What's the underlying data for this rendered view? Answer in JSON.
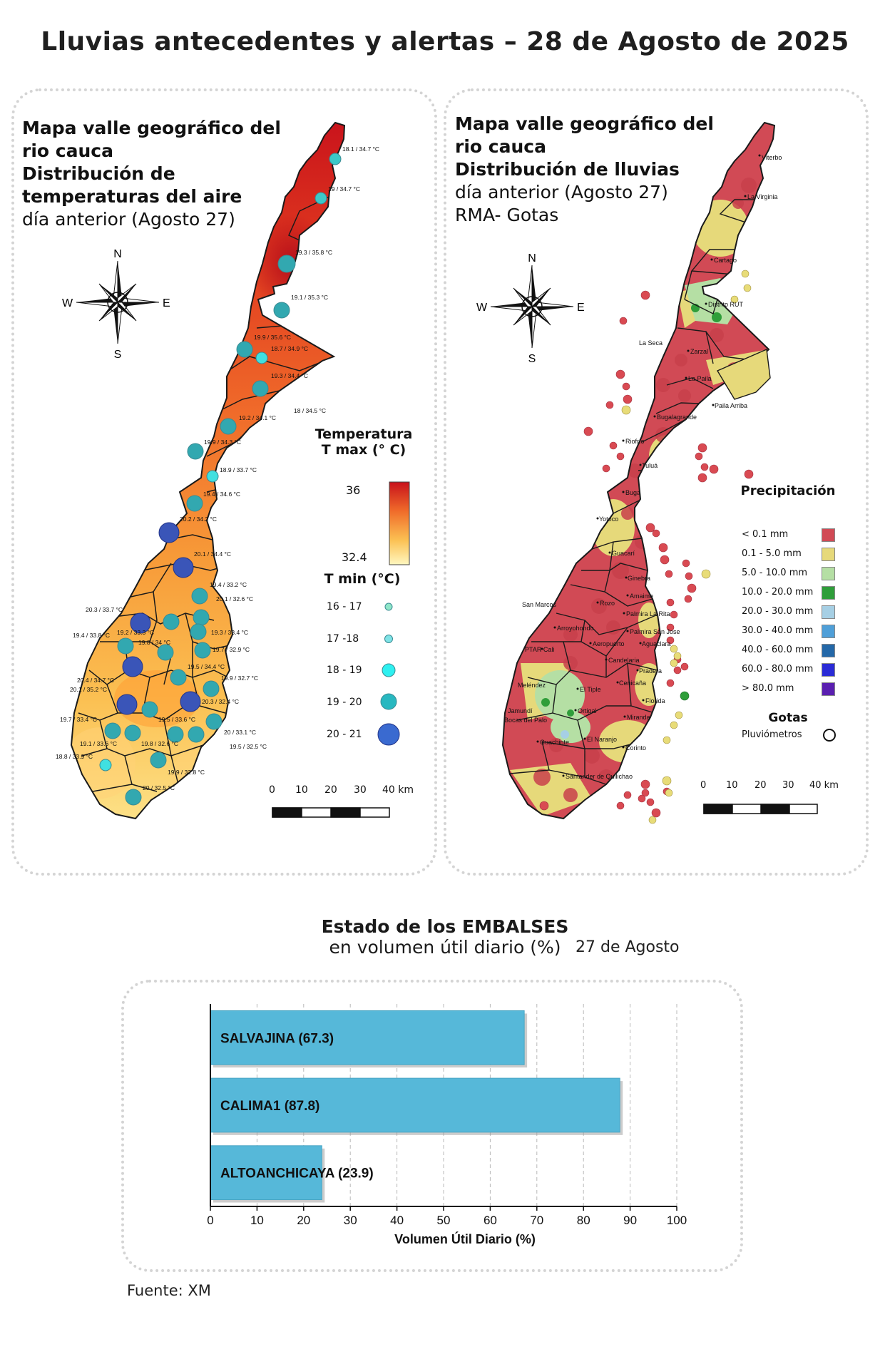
{
  "page_title": "Lluvias antecedentes y alertas – 28 de Agosto de 2025",
  "temp_panel": {
    "title_line1": "Mapa valle geográfico del",
    "title_line2": "rio cauca",
    "title_line3": "Distribución de",
    "title_line4": "temperaturas del aire",
    "title_line5": "día anterior (Agosto 27)",
    "compass": {
      "n": "N",
      "s": "S",
      "e": "E",
      "w": "W"
    },
    "legend_tmax_title_line1": "Temperatura",
    "legend_tmax_title_line2": "T max (° C)",
    "tmax_high": "36",
    "tmax_low": "32.4",
    "legend_tmin_title": "T min (°C)",
    "tmin_classes": [
      "16 - 17",
      "17 -18",
      "18 - 19",
      "19 - 20",
      "20 - 21"
    ],
    "station_labels": [
      "18.1 / 34.7 °C",
      "19 / 34.7 °C",
      "19.3 / 35.8 °C",
      "19.1 / 35.3 °C",
      "19.9 / 35.6 °C",
      "18.7 / 34.9 °C",
      "19.3 / 34.4 °C",
      "18 / 34.5 °C",
      "19.2 / 34.1 °C",
      "19.9 / 34.3 °C",
      "18.9 / 33.7 °C",
      "19.4 / 34.6 °C",
      "20.2 / 34.2 °C",
      "20.1 / 34.4 °C",
      "19.4 / 33.2 °C",
      "20.1 / 32.6 °C",
      "20.3 / 33.7 °C",
      "19.4 / 33.8 °C",
      "19.2 / 33.3 °C",
      "19.8 / 34 °C",
      "19.3 / 33.4 °C",
      "19.7 / 32.9 °C",
      "20.4 / 34.7 °C",
      "19.5 / 34.4 °C",
      "19.9 / 32.7 °C",
      "20.1 / 35.2 °C",
      "20.3 / 32.4 °C",
      "19.7 / 33.4 °C",
      "19.5 / 33.6 °C",
      "20 / 33.1 °C",
      "19.1 / 33.6 °C",
      "19.8 / 32.6 °C",
      "19.5 / 32.5 °C",
      "18.8 / 33.9 °C",
      "19.9 / 32.8 °C",
      "20 / 32.5 °C"
    ],
    "scale_labels": [
      "0",
      "10",
      "20",
      "30",
      "40 km"
    ]
  },
  "rain_panel": {
    "title_line1": "Mapa valle geográfico del",
    "title_line2": "rio cauca",
    "title_line3": "Distribución de lluvias",
    "title_line4": "día anterior (Agosto 27)",
    "title_line5": "RMA- Gotas",
    "compass": {
      "n": "N",
      "s": "S",
      "e": "E",
      "w": "W"
    },
    "legend_title": "Precipitación",
    "precip_classes": [
      {
        "label": "< 0.1 mm",
        "color": "#d14a55"
      },
      {
        "label": "0.1 - 5.0 mm",
        "color": "#e6d97a"
      },
      {
        "label": "5.0 - 10.0 mm",
        "color": "#b5dfa4"
      },
      {
        "label": "10.0 - 20.0 mm",
        "color": "#2f9e3a"
      },
      {
        "label": "20.0 - 30.0 mm",
        "color": "#a6cfe4"
      },
      {
        "label": "30.0 - 40.0 mm",
        "color": "#4f9fd8"
      },
      {
        "label": "40.0 - 60.0 mm",
        "color": "#2468a8"
      },
      {
        "label": "60.0 - 80.0 mm",
        "color": "#2a2bd6"
      },
      {
        "label": "> 80.0 mm",
        "color": "#5a1fb0"
      }
    ],
    "gotas_title": "Gotas",
    "gotas_label": "Pluviómetros",
    "towns": [
      "Viterbo",
      "La Virginia",
      "Cartago",
      "Distrito RUT",
      "La Seca",
      "Zarzal",
      "La Paila",
      "Paila Arriba",
      "Bugalagrande",
      "Riofrío",
      "Tuluá",
      "Buga",
      "Yotoco",
      "Guacarí",
      "Ginebra",
      "San Marcos",
      "Rozo",
      "Amaime",
      "Palmira La Rita",
      "Arroyohondo",
      "Palmira San Jose",
      "Aeropuerto",
      "Aguaclara",
      "PTAR Cali",
      "Candelaria",
      "Cenicaña",
      "Pradera",
      "Meléndez",
      "El Tiple",
      "Florida",
      "Jamundí",
      "Bocas del Palo",
      "Ortigal",
      "Miranda",
      "Guachinte",
      "El Naranjo",
      "Corinto",
      "Santander de Quilichao"
    ],
    "scale_labels": [
      "0",
      "10",
      "20",
      "30",
      "40 km"
    ]
  },
  "reservoirs": {
    "title_bold": "Estado de los EMBALSES",
    "title_normal": "en volumen útil diario (%)",
    "date": "27 de Agosto",
    "source": "Fuente: XM"
  },
  "chart_data": {
    "type": "bar",
    "orientation": "horizontal",
    "categories": [
      "SALVAJINA (67.3)",
      "CALIMA1 (87.8)",
      "ALTOANCHICAYA (23.9)"
    ],
    "values": [
      67.3,
      87.8,
      23.9
    ],
    "xlabel": "Volumen Útil Diario (%)",
    "xlim": [
      0,
      100
    ],
    "xticks": [
      0,
      10,
      20,
      30,
      40,
      50,
      60,
      70,
      80,
      90,
      100
    ],
    "grid": "vertical dashed",
    "bar_color": "#56b8d9"
  }
}
